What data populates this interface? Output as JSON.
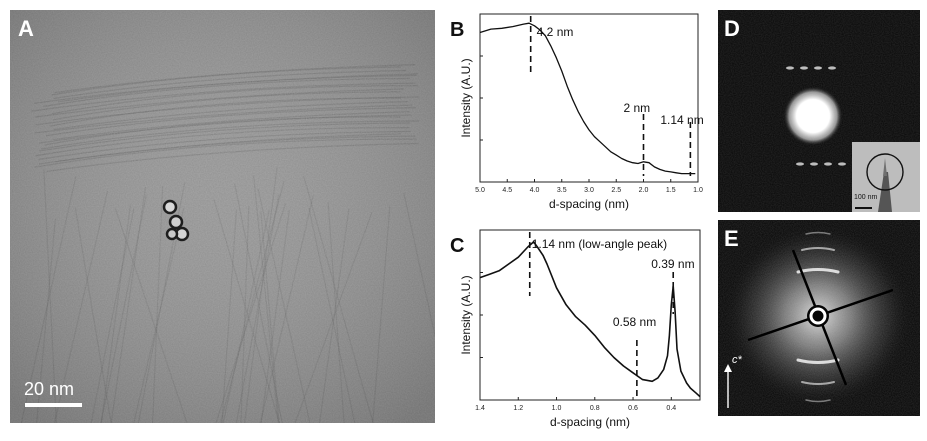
{
  "figure": {
    "panel_a": {
      "label": "A",
      "scalebar": "20 nm"
    },
    "panel_d": {
      "label": "D",
      "inset_scalebar": "100 nm"
    },
    "panel_e": {
      "label": "E",
      "axis_label": "c*"
    }
  },
  "chart_data": [
    {
      "id": "B",
      "type": "line",
      "panel_label": "B",
      "xlabel": "d-spacing (nm)",
      "ylabel": "Intensity (A.U.)",
      "x_reversed": true,
      "xlim": [
        5.0,
        1.0
      ],
      "x_ticks": [
        "5.0",
        "4.5",
        "4.0",
        "3.5",
        "3.0",
        "2.5",
        "2.0",
        "1.5",
        "1.0"
      ],
      "ylim": [
        0,
        1
      ],
      "y_ticks_labeled": false,
      "series": [
        {
          "x": [
            5.0,
            4.8,
            4.6,
            4.4,
            4.2,
            4.1,
            4.0,
            3.9,
            3.8,
            3.7,
            3.6,
            3.5,
            3.4,
            3.3,
            3.2,
            3.1,
            3.0,
            2.9,
            2.8,
            2.7,
            2.6,
            2.5,
            2.4,
            2.3,
            2.2,
            2.1,
            2.0,
            1.9,
            1.8,
            1.7,
            1.6,
            1.5,
            1.4,
            1.3,
            1.2,
            1.14,
            1.05
          ],
          "y": [
            0.89,
            0.91,
            0.915,
            0.925,
            0.94,
            0.945,
            0.93,
            0.905,
            0.87,
            0.81,
            0.74,
            0.66,
            0.57,
            0.49,
            0.42,
            0.36,
            0.31,
            0.27,
            0.24,
            0.21,
            0.18,
            0.16,
            0.14,
            0.125,
            0.115,
            0.11,
            0.12,
            0.115,
            0.09,
            0.075,
            0.065,
            0.06,
            0.055,
            0.05,
            0.05,
            0.05,
            0.05
          ]
        }
      ],
      "annotations": [
        {
          "label": "4.2 nm",
          "x": 4.07
        },
        {
          "label": "2 nm",
          "x": 2.0
        },
        {
          "label": "1.14 nm",
          "x": 1.14
        }
      ]
    },
    {
      "id": "C",
      "type": "line",
      "panel_label": "C",
      "xlabel": "d-spacing (nm)",
      "ylabel": "Intensity (A.U.)",
      "x_reversed": true,
      "xlim": [
        1.4,
        0.25
      ],
      "x_ticks": [
        "1.4",
        "1.2",
        "1.0",
        "0.8",
        "0.6",
        "0.4"
      ],
      "ylim": [
        0,
        1
      ],
      "y_ticks_labeled": false,
      "series": [
        {
          "x": [
            1.4,
            1.35,
            1.3,
            1.25,
            1.2,
            1.15,
            1.12,
            1.1,
            1.07,
            1.05,
            1.0,
            0.95,
            0.9,
            0.85,
            0.8,
            0.75,
            0.7,
            0.65,
            0.6,
            0.55,
            0.5,
            0.47,
            0.44,
            0.42,
            0.41,
            0.4,
            0.39,
            0.38,
            0.37,
            0.35,
            0.32,
            0.3,
            0.27,
            0.25
          ],
          "y": [
            0.72,
            0.74,
            0.76,
            0.8,
            0.84,
            0.9,
            0.93,
            0.9,
            0.85,
            0.8,
            0.66,
            0.56,
            0.49,
            0.44,
            0.38,
            0.31,
            0.25,
            0.2,
            0.16,
            0.12,
            0.11,
            0.13,
            0.18,
            0.26,
            0.38,
            0.56,
            0.67,
            0.52,
            0.3,
            0.17,
            0.1,
            0.07,
            0.04,
            0.02
          ]
        }
      ],
      "annotations": [
        {
          "label": "1.14 nm (low-angle peak)",
          "x": 1.14
        },
        {
          "label": "0.58 nm",
          "x": 0.58
        },
        {
          "label": "0.39 nm",
          "x": 0.39
        }
      ]
    }
  ]
}
